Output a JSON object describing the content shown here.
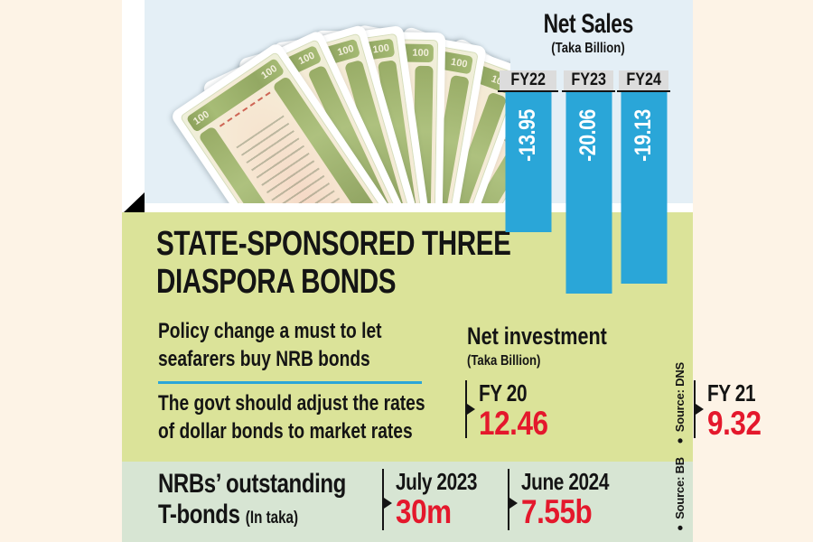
{
  "colors": {
    "cream_bg": "#fdf3e6",
    "photo_blue": "#e4eff6",
    "panel_green": "#dbe399",
    "panel_mint": "#d7e5d3",
    "bar_blue": "#2aa6d8",
    "accent_red": "#e4182c",
    "header_gray": "#dcdcdc",
    "text_black": "#141414"
  },
  "photo": {
    "description": "Fan of Bangladesh 100-taka bond certificates",
    "note_value": "100"
  },
  "net_sales": {
    "title": "Net Sales",
    "subtitle": "(Taka Billion)",
    "columns": [
      {
        "label": "FY22",
        "value": "-13.95"
      },
      {
        "label": "FY23",
        "value": "-20.06"
      },
      {
        "label": "FY24",
        "value": "-19.13"
      }
    ]
  },
  "main_panel": {
    "heading_line1": "STATE-SPONSORED THREE",
    "heading_line2": "DIASPORA BONDS",
    "point1_line1": "Policy change a must to let",
    "point1_line2": "seafarers buy NRB bonds",
    "point2_line1": "The govt should adjust the rates",
    "point2_line2": "of dollar bonds to market rates",
    "net_investment": {
      "title": "Net investment",
      "subtitle": "(Taka Billion)",
      "items": [
        {
          "label": "FY 20",
          "value": "12.46"
        },
        {
          "label": "FY 21",
          "value": "9.32"
        }
      ]
    },
    "bullet": "●",
    "source": "Source: DNS"
  },
  "tbonds_panel": {
    "heading_line1": "NRBs’ outstanding",
    "heading_line2": "T-bonds",
    "heading_note": "(In taka)",
    "items": [
      {
        "label": "July 2023",
        "value": "30m"
      },
      {
        "label": "June 2024",
        "value": "7.55b"
      }
    ],
    "bullet": "●",
    "source": "Source: BB"
  },
  "chart_data": [
    {
      "type": "bar",
      "title": "Net Sales",
      "ylabel": "Taka Billion",
      "categories": [
        "FY22",
        "FY23",
        "FY24"
      ],
      "values": [
        -13.95,
        -20.06,
        -19.13
      ],
      "bar_color": "#2aa6d8",
      "orientation": "vertical",
      "value_labels_rotated": true,
      "legend": "none",
      "grid": false
    },
    {
      "type": "table",
      "title": "Net investment (Taka Billion)",
      "categories": [
        "FY 20",
        "FY 21"
      ],
      "values": [
        12.46,
        9.32
      ]
    },
    {
      "type": "table",
      "title": "NRBs’ outstanding T-bonds (In taka)",
      "categories": [
        "July 2023",
        "June 2024"
      ],
      "values": [
        "30m",
        "7.55b"
      ]
    }
  ]
}
